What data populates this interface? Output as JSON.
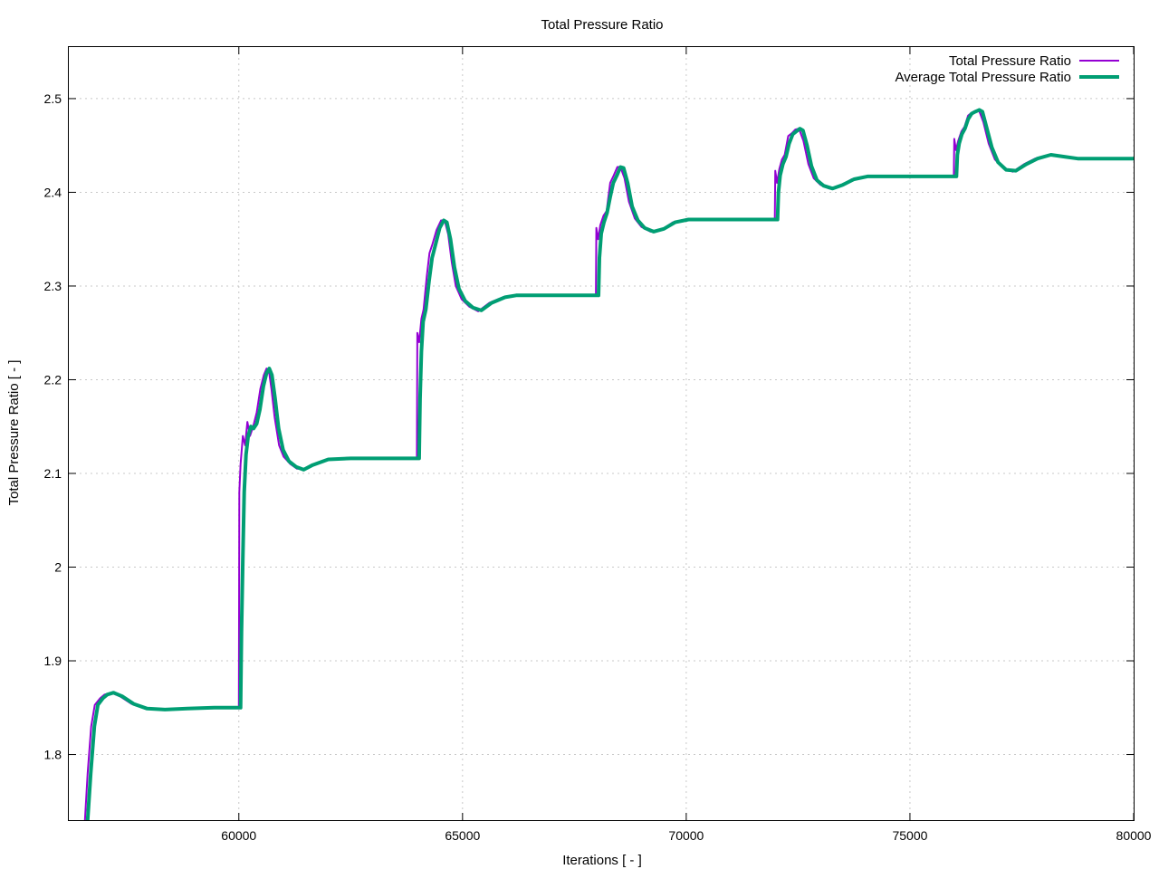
{
  "chart_data": {
    "type": "line",
    "title": "Total Pressure Ratio",
    "xlabel": "Iterations [ - ]",
    "ylabel": "Total Pressure Ratio [ - ]",
    "xlim": [
      56200,
      80000
    ],
    "ylim": [
      1.73,
      2.555
    ],
    "xticks": [
      {
        "value": 60000,
        "label": "60000"
      },
      {
        "value": 65000,
        "label": "65000"
      },
      {
        "value": 70000,
        "label": "70000"
      },
      {
        "value": 75000,
        "label": "75000"
      },
      {
        "value": 80000,
        "label": "80000"
      }
    ],
    "yticks": [
      {
        "value": 1.8,
        "label": "1.8"
      },
      {
        "value": 1.9,
        "label": "1.9"
      },
      {
        "value": 2.0,
        "label": "2"
      },
      {
        "value": 2.1,
        "label": "2.1"
      },
      {
        "value": 2.2,
        "label": "2.2"
      },
      {
        "value": 2.3,
        "label": "2.3"
      },
      {
        "value": 2.4,
        "label": "2.4"
      },
      {
        "value": 2.5,
        "label": "2.5"
      }
    ],
    "grid": true,
    "legend_position": "top-right",
    "series": [
      {
        "name": "Total Pressure Ratio",
        "color": "#9400d3",
        "points": [
          [
            56560,
            1.73
          ],
          [
            56620,
            1.78
          ],
          [
            56700,
            1.83
          ],
          [
            56780,
            1.853
          ],
          [
            56900,
            1.86
          ],
          [
            57000,
            1.864
          ],
          [
            57150,
            1.866
          ],
          [
            57350,
            1.862
          ],
          [
            57600,
            1.854
          ],
          [
            57900,
            1.849
          ],
          [
            58300,
            1.848
          ],
          [
            58800,
            1.849
          ],
          [
            59400,
            1.85
          ],
          [
            60000,
            1.85
          ],
          [
            60010,
            2.08
          ],
          [
            60040,
            2.11
          ],
          [
            60090,
            2.14
          ],
          [
            60140,
            2.13
          ],
          [
            60190,
            2.155
          ],
          [
            60250,
            2.14
          ],
          [
            60320,
            2.15
          ],
          [
            60400,
            2.165
          ],
          [
            60480,
            2.19
          ],
          [
            60560,
            2.205
          ],
          [
            60620,
            2.212
          ],
          [
            60670,
            2.21
          ],
          [
            60730,
            2.19
          ],
          [
            60800,
            2.16
          ],
          [
            60900,
            2.13
          ],
          [
            61000,
            2.118
          ],
          [
            61150,
            2.11
          ],
          [
            61300,
            2.105
          ],
          [
            61500,
            2.105
          ],
          [
            61700,
            2.11
          ],
          [
            62000,
            2.115
          ],
          [
            62500,
            2.116
          ],
          [
            63200,
            2.116
          ],
          [
            63980,
            2.116
          ],
          [
            63990,
            2.25
          ],
          [
            64030,
            2.24
          ],
          [
            64080,
            2.265
          ],
          [
            64130,
            2.275
          ],
          [
            64200,
            2.31
          ],
          [
            64260,
            2.335
          ],
          [
            64330,
            2.345
          ],
          [
            64420,
            2.36
          ],
          [
            64520,
            2.37
          ],
          [
            64600,
            2.37
          ],
          [
            64680,
            2.355
          ],
          [
            64760,
            2.325
          ],
          [
            64850,
            2.3
          ],
          [
            64980,
            2.286
          ],
          [
            65150,
            2.278
          ],
          [
            65350,
            2.273
          ],
          [
            65600,
            2.282
          ],
          [
            65900,
            2.288
          ],
          [
            66200,
            2.29
          ],
          [
            66800,
            2.29
          ],
          [
            67500,
            2.29
          ],
          [
            67980,
            2.29
          ],
          [
            67990,
            2.362
          ],
          [
            68030,
            2.35
          ],
          [
            68080,
            2.365
          ],
          [
            68150,
            2.375
          ],
          [
            68220,
            2.38
          ],
          [
            68300,
            2.41
          ],
          [
            68380,
            2.418
          ],
          [
            68460,
            2.427
          ],
          [
            68530,
            2.427
          ],
          [
            68620,
            2.415
          ],
          [
            68720,
            2.39
          ],
          [
            68850,
            2.372
          ],
          [
            69000,
            2.363
          ],
          [
            69200,
            2.358
          ],
          [
            69450,
            2.36
          ],
          [
            69700,
            2.368
          ],
          [
            70000,
            2.371
          ],
          [
            70600,
            2.371
          ],
          [
            71300,
            2.371
          ],
          [
            71980,
            2.371
          ],
          [
            71990,
            2.423
          ],
          [
            72030,
            2.41
          ],
          [
            72080,
            2.425
          ],
          [
            72140,
            2.435
          ],
          [
            72200,
            2.44
          ],
          [
            72280,
            2.46
          ],
          [
            72360,
            2.463
          ],
          [
            72440,
            2.467
          ],
          [
            72520,
            2.468
          ],
          [
            72620,
            2.455
          ],
          [
            72730,
            2.43
          ],
          [
            72850,
            2.415
          ],
          [
            73000,
            2.408
          ],
          [
            73200,
            2.404
          ],
          [
            73450,
            2.407
          ],
          [
            73700,
            2.414
          ],
          [
            74000,
            2.417
          ],
          [
            74600,
            2.417
          ],
          [
            75300,
            2.417
          ],
          [
            75980,
            2.417
          ],
          [
            75990,
            2.457
          ],
          [
            76030,
            2.445
          ],
          [
            76080,
            2.455
          ],
          [
            76150,
            2.465
          ],
          [
            76220,
            2.47
          ],
          [
            76300,
            2.482
          ],
          [
            76380,
            2.485
          ],
          [
            76460,
            2.487
          ],
          [
            76540,
            2.488
          ],
          [
            76640,
            2.475
          ],
          [
            76760,
            2.452
          ],
          [
            76900,
            2.435
          ],
          [
            77080,
            2.426
          ],
          [
            77300,
            2.422
          ],
          [
            77550,
            2.43
          ],
          [
            77800,
            2.436
          ],
          [
            78100,
            2.44
          ],
          [
            78400,
            2.438
          ],
          [
            78700,
            2.436
          ],
          [
            79200,
            2.436
          ],
          [
            80000,
            2.436
          ]
        ]
      },
      {
        "name": "Average Total Pressure Ratio",
        "color": "#009e73",
        "points": [
          [
            56620,
            1.73
          ],
          [
            56690,
            1.78
          ],
          [
            56770,
            1.83
          ],
          [
            56850,
            1.853
          ],
          [
            56960,
            1.86
          ],
          [
            57060,
            1.864
          ],
          [
            57200,
            1.866
          ],
          [
            57400,
            1.862
          ],
          [
            57650,
            1.854
          ],
          [
            57950,
            1.849
          ],
          [
            58350,
            1.848
          ],
          [
            58850,
            1.849
          ],
          [
            59450,
            1.85
          ],
          [
            60040,
            1.85
          ],
          [
            60060,
            1.93
          ],
          [
            60090,
            2.01
          ],
          [
            60120,
            2.08
          ],
          [
            60160,
            2.12
          ],
          [
            60210,
            2.14
          ],
          [
            60270,
            2.15
          ],
          [
            60330,
            2.148
          ],
          [
            60400,
            2.153
          ],
          [
            60470,
            2.168
          ],
          [
            60550,
            2.193
          ],
          [
            60620,
            2.207
          ],
          [
            60680,
            2.212
          ],
          [
            60740,
            2.205
          ],
          [
            60810,
            2.18
          ],
          [
            60890,
            2.148
          ],
          [
            60990,
            2.125
          ],
          [
            61120,
            2.113
          ],
          [
            61280,
            2.107
          ],
          [
            61450,
            2.104
          ],
          [
            61650,
            2.109
          ],
          [
            62000,
            2.115
          ],
          [
            62500,
            2.116
          ],
          [
            63200,
            2.116
          ],
          [
            64030,
            2.116
          ],
          [
            64050,
            2.18
          ],
          [
            64080,
            2.23
          ],
          [
            64120,
            2.262
          ],
          [
            64180,
            2.275
          ],
          [
            64250,
            2.305
          ],
          [
            64320,
            2.33
          ],
          [
            64400,
            2.345
          ],
          [
            64490,
            2.362
          ],
          [
            64580,
            2.37
          ],
          [
            64650,
            2.368
          ],
          [
            64730,
            2.35
          ],
          [
            64820,
            2.32
          ],
          [
            64920,
            2.297
          ],
          [
            65060,
            2.284
          ],
          [
            65230,
            2.277
          ],
          [
            65420,
            2.274
          ],
          [
            65650,
            2.282
          ],
          [
            65950,
            2.288
          ],
          [
            66200,
            2.29
          ],
          [
            66800,
            2.29
          ],
          [
            67500,
            2.29
          ],
          [
            68040,
            2.29
          ],
          [
            68060,
            2.33
          ],
          [
            68100,
            2.356
          ],
          [
            68160,
            2.368
          ],
          [
            68230,
            2.378
          ],
          [
            68300,
            2.395
          ],
          [
            68370,
            2.41
          ],
          [
            68450,
            2.418
          ],
          [
            68530,
            2.427
          ],
          [
            68600,
            2.426
          ],
          [
            68690,
            2.41
          ],
          [
            68790,
            2.385
          ],
          [
            68920,
            2.37
          ],
          [
            69070,
            2.362
          ],
          [
            69270,
            2.358
          ],
          [
            69500,
            2.361
          ],
          [
            69750,
            2.368
          ],
          [
            70050,
            2.371
          ],
          [
            70600,
            2.371
          ],
          [
            71300,
            2.371
          ],
          [
            72040,
            2.371
          ],
          [
            72060,
            2.4
          ],
          [
            72100,
            2.418
          ],
          [
            72160,
            2.43
          ],
          [
            72230,
            2.438
          ],
          [
            72300,
            2.452
          ],
          [
            72380,
            2.462
          ],
          [
            72460,
            2.465
          ],
          [
            72540,
            2.468
          ],
          [
            72610,
            2.466
          ],
          [
            72700,
            2.45
          ],
          [
            72800,
            2.428
          ],
          [
            72920,
            2.413
          ],
          [
            73070,
            2.407
          ],
          [
            73270,
            2.404
          ],
          [
            73500,
            2.408
          ],
          [
            73750,
            2.414
          ],
          [
            74050,
            2.417
          ],
          [
            74600,
            2.417
          ],
          [
            75300,
            2.417
          ],
          [
            76040,
            2.417
          ],
          [
            76060,
            2.44
          ],
          [
            76100,
            2.452
          ],
          [
            76160,
            2.462
          ],
          [
            76230,
            2.468
          ],
          [
            76300,
            2.478
          ],
          [
            76380,
            2.484
          ],
          [
            76460,
            2.486
          ],
          [
            76550,
            2.488
          ],
          [
            76620,
            2.486
          ],
          [
            76710,
            2.47
          ],
          [
            76830,
            2.448
          ],
          [
            76970,
            2.432
          ],
          [
            77150,
            2.424
          ],
          [
            77370,
            2.423
          ],
          [
            77600,
            2.43
          ],
          [
            77850,
            2.436
          ],
          [
            78150,
            2.44
          ],
          [
            78450,
            2.438
          ],
          [
            78750,
            2.436
          ],
          [
            79200,
            2.436
          ],
          [
            80000,
            2.436
          ]
        ]
      }
    ]
  }
}
